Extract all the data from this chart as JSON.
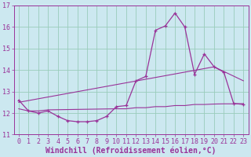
{
  "xlabel": "Windchill (Refroidissement éolien,°C)",
  "bg_color": "#cce8f0",
  "grid_color": "#99ccbb",
  "line_color": "#993399",
  "xlim": [
    -0.5,
    23.5
  ],
  "ylim": [
    11.0,
    17.0
  ],
  "yticks": [
    11,
    12,
    13,
    14,
    15,
    16,
    17
  ],
  "xticks": [
    0,
    1,
    2,
    3,
    4,
    5,
    6,
    7,
    8,
    9,
    10,
    11,
    12,
    13,
    14,
    15,
    16,
    17,
    18,
    19,
    20,
    21,
    22,
    23
  ],
  "series1_x": [
    0,
    1,
    2,
    3,
    4,
    5,
    6,
    7,
    8,
    9,
    10,
    11,
    12,
    13,
    14,
    15,
    16,
    17,
    18,
    19,
    20,
    21,
    22,
    23
  ],
  "series1_y": [
    12.6,
    12.1,
    12.0,
    12.1,
    11.85,
    11.65,
    11.6,
    11.6,
    11.65,
    11.85,
    12.3,
    12.35,
    13.5,
    13.7,
    15.85,
    16.05,
    16.65,
    16.0,
    13.8,
    14.75,
    14.15,
    13.9,
    12.45,
    12.4
  ],
  "series2_x": [
    0,
    1,
    2,
    3,
    10,
    11,
    12,
    13,
    14,
    15,
    16,
    17,
    18,
    19,
    20,
    21,
    22,
    23
  ],
  "series2_y": [
    12.2,
    12.1,
    12.1,
    12.15,
    12.2,
    12.2,
    12.25,
    12.25,
    12.3,
    12.3,
    12.35,
    12.35,
    12.4,
    12.4,
    12.42,
    12.43,
    12.43,
    12.44
  ],
  "series3_x": [
    0,
    20,
    23
  ],
  "series3_y": [
    12.5,
    14.15,
    13.5
  ],
  "xlabel_fontsize": 7,
  "tick_fontsize": 6,
  "ylabel_fontsize": 6
}
